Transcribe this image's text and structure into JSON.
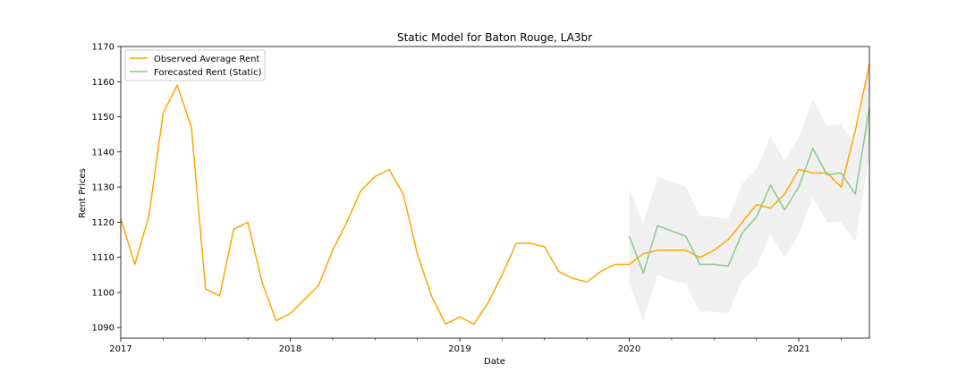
{
  "chart_data": {
    "type": "line",
    "title": "Static Model for Baton Rouge, LA3br",
    "xlabel": "Date",
    "ylabel": "Rent Prices",
    "xlim": [
      0,
      53
    ],
    "ylim": [
      1087,
      1170
    ],
    "x_ticks": [
      {
        "month_index": 0,
        "label": "2017"
      },
      {
        "month_index": 12,
        "label": "2018"
      },
      {
        "month_index": 24,
        "label": "2019"
      },
      {
        "month_index": 36,
        "label": "2020"
      },
      {
        "month_index": 48,
        "label": "2021"
      }
    ],
    "y_ticks": [
      1090,
      1100,
      1110,
      1120,
      1130,
      1140,
      1150,
      1160,
      1170
    ],
    "legend_position": "top-left",
    "series": [
      {
        "name": "Observed Average Rent",
        "color": "#ffa500",
        "x_start_month_index": 0,
        "values": [
          1121,
          1108,
          1122,
          1151,
          1159,
          1147,
          1101,
          1099,
          1118,
          1120,
          1103,
          1092,
          1094,
          1098,
          1102,
          1112,
          1120,
          1129,
          1133,
          1135,
          1128,
          1111,
          1099,
          1091,
          1093,
          1091,
          1097,
          1105,
          1114,
          1114,
          1113,
          1106,
          1104,
          1103,
          1106,
          1108,
          1108,
          1111,
          1112,
          1112,
          1112,
          1110,
          1112,
          1115,
          1120,
          1125,
          1124,
          1128,
          1135,
          1134,
          1134,
          1130,
          1146,
          1165
        ]
      },
      {
        "name": "Forecasted Rent (Static)",
        "color": "#8cc78c",
        "x_start_month_index": 36,
        "values": [
          1116,
          1105.5,
          1119,
          1117.5,
          1116,
          1108,
          1108,
          1107.5,
          1117,
          1121.5,
          1130.5,
          1123.5,
          1130,
          1141,
          1133.5,
          1134,
          1128,
          1152.5
        ]
      }
    ],
    "confidence_band": {
      "name": "Forecast confidence interval",
      "color": "#d9d9d9",
      "x_start_month_index": 36,
      "upper": [
        1129.5,
        1119.5,
        1133,
        1131.5,
        1130,
        1122,
        1121.5,
        1121,
        1131,
        1135,
        1144.5,
        1137.5,
        1144,
        1155,
        1147.5,
        1148,
        1142,
        1166
      ],
      "lower": [
        1102.5,
        1092,
        1105,
        1103.5,
        1102.5,
        1094.5,
        1094.5,
        1094,
        1103.5,
        1107.5,
        1116.5,
        1110,
        1116.5,
        1127,
        1120,
        1120,
        1114.5,
        1139
      ]
    }
  }
}
